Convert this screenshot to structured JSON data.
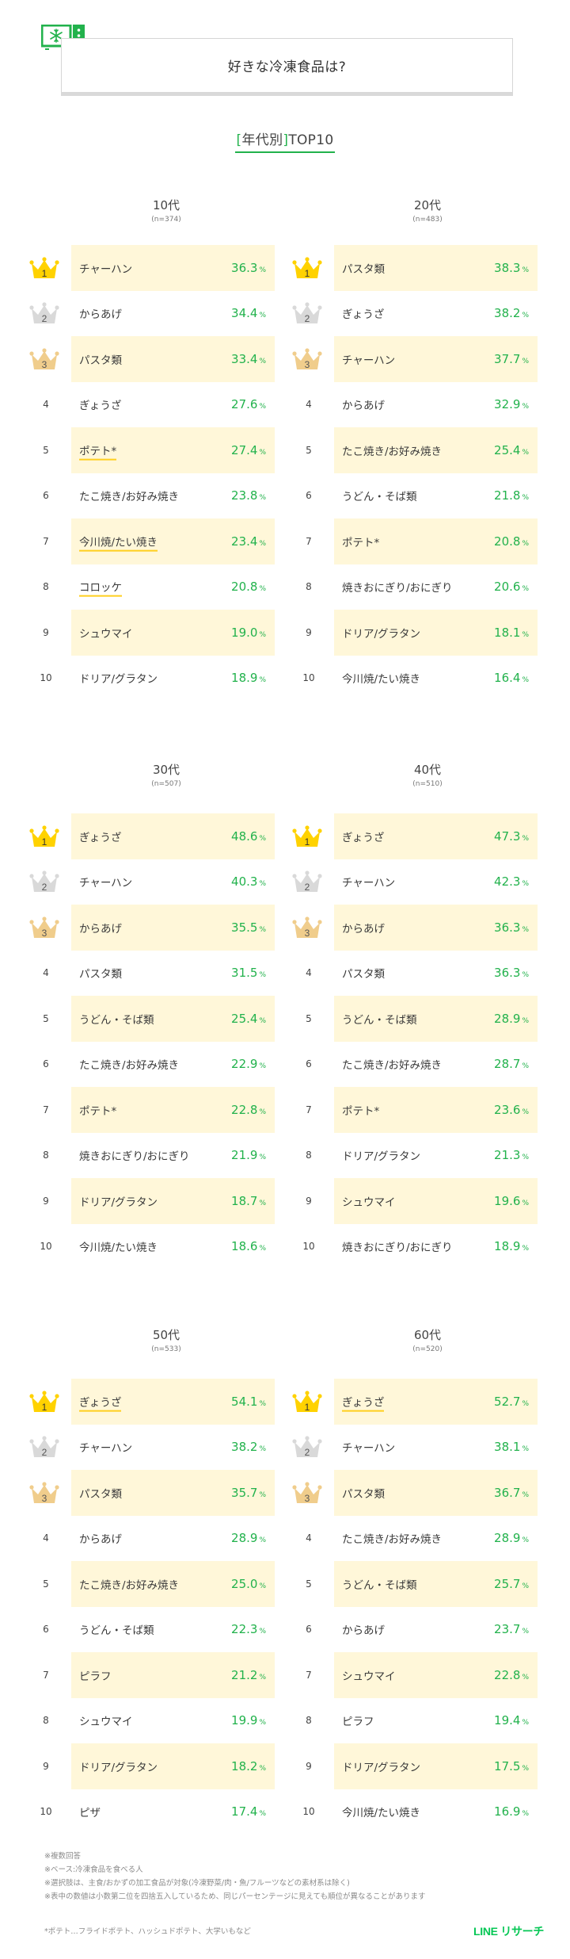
{
  "header": {
    "title": "好きな冷凍食品は?",
    "icon": "freezer-snowflake-icon"
  },
  "subtitle": {
    "bracket_open": "[",
    "label": "年代別",
    "bracket_close": "]",
    "suffix": "TOP10"
  },
  "colors": {
    "accent_green": "#22b24c",
    "highlight_bg": "#fff7d9",
    "underline_yellow": "#ffcf1f",
    "crown_gold": "#ffd200",
    "crown_silver": "#d9d9d9",
    "crown_bronze": "#f0cd8c",
    "brand_green": "#06c755"
  },
  "percent_unit": "%",
  "panels": [
    {
      "age": "10代",
      "n": "(n=374)",
      "rows": [
        {
          "rank": "1",
          "name": "チャーハン",
          "value": "36.3"
        },
        {
          "rank": "2",
          "name": "からあげ",
          "value": "34.4"
        },
        {
          "rank": "3",
          "name": "パスタ類",
          "value": "33.4"
        },
        {
          "rank": "4",
          "name": "ぎょうざ",
          "value": "27.6"
        },
        {
          "rank": "5",
          "name": "ポテト*",
          "value": "27.4"
        },
        {
          "rank": "6",
          "name": "たこ焼き/お好み焼き",
          "value": "23.8"
        },
        {
          "rank": "7",
          "name": "今川焼/たい焼き",
          "value": "23.4"
        },
        {
          "rank": "8",
          "name": "コロッケ",
          "value": "20.8"
        },
        {
          "rank": "9",
          "name": "シュウマイ",
          "value": "19.0"
        },
        {
          "rank": "10",
          "name": "ドリア/グラタン",
          "value": "18.9"
        }
      ]
    },
    {
      "age": "20代",
      "n": "(n=483)",
      "rows": [
        {
          "rank": "1",
          "name": "パスタ類",
          "value": "38.3"
        },
        {
          "rank": "2",
          "name": "ぎょうざ",
          "value": "38.2"
        },
        {
          "rank": "3",
          "name": "チャーハン",
          "value": "37.7"
        },
        {
          "rank": "4",
          "name": "からあげ",
          "value": "32.9"
        },
        {
          "rank": "5",
          "name": "たこ焼き/お好み焼き",
          "value": "25.4"
        },
        {
          "rank": "6",
          "name": "うどん・そば類",
          "value": "21.8"
        },
        {
          "rank": "7",
          "name": "ポテト*",
          "value": "20.8"
        },
        {
          "rank": "8",
          "name": "焼きおにぎり/おにぎり",
          "value": "20.6"
        },
        {
          "rank": "9",
          "name": "ドリア/グラタン",
          "value": "18.1"
        },
        {
          "rank": "10",
          "name": "今川焼/たい焼き",
          "value": "16.4"
        }
      ]
    },
    {
      "age": "30代",
      "n": "(n=507)",
      "rows": [
        {
          "rank": "1",
          "name": "ぎょうざ",
          "value": "48.6"
        },
        {
          "rank": "2",
          "name": "チャーハン",
          "value": "40.3"
        },
        {
          "rank": "3",
          "name": "からあげ",
          "value": "35.5"
        },
        {
          "rank": "4",
          "name": "パスタ類",
          "value": "31.5"
        },
        {
          "rank": "5",
          "name": "うどん・そば類",
          "value": "25.4"
        },
        {
          "rank": "6",
          "name": "たこ焼き/お好み焼き",
          "value": "22.9"
        },
        {
          "rank": "7",
          "name": "ポテト*",
          "value": "22.8"
        },
        {
          "rank": "8",
          "name": "焼きおにぎり/おにぎり",
          "value": "21.9"
        },
        {
          "rank": "9",
          "name": "ドリア/グラタン",
          "value": "18.7"
        },
        {
          "rank": "10",
          "name": "今川焼/たい焼き",
          "value": "18.6"
        }
      ]
    },
    {
      "age": "40代",
      "n": "(n=510)",
      "rows": [
        {
          "rank": "1",
          "name": "ぎょうざ",
          "value": "47.3"
        },
        {
          "rank": "2",
          "name": "チャーハン",
          "value": "42.3"
        },
        {
          "rank": "3",
          "name": "からあげ",
          "value": "36.3"
        },
        {
          "rank": "4",
          "name": "パスタ類",
          "value": "36.3"
        },
        {
          "rank": "5",
          "name": "うどん・そば類",
          "value": "28.9"
        },
        {
          "rank": "6",
          "name": "たこ焼き/お好み焼き",
          "value": "28.7"
        },
        {
          "rank": "7",
          "name": "ポテト*",
          "value": "23.6"
        },
        {
          "rank": "8",
          "name": "ドリア/グラタン",
          "value": "21.3"
        },
        {
          "rank": "9",
          "name": "シュウマイ",
          "value": "19.6"
        },
        {
          "rank": "10",
          "name": "焼きおにぎり/おにぎり",
          "value": "18.9"
        }
      ]
    },
    {
      "age": "50代",
      "n": "(n=533)",
      "rows": [
        {
          "rank": "1",
          "name": "ぎょうざ",
          "value": "54.1"
        },
        {
          "rank": "2",
          "name": "チャーハン",
          "value": "38.2"
        },
        {
          "rank": "3",
          "name": "パスタ類",
          "value": "35.7"
        },
        {
          "rank": "4",
          "name": "からあげ",
          "value": "28.9"
        },
        {
          "rank": "5",
          "name": "たこ焼き/お好み焼き",
          "value": "25.0"
        },
        {
          "rank": "6",
          "name": "うどん・そば類",
          "value": "22.3"
        },
        {
          "rank": "7",
          "name": "ピラフ",
          "value": "21.2"
        },
        {
          "rank": "8",
          "name": "シュウマイ",
          "value": "19.9"
        },
        {
          "rank": "9",
          "name": "ドリア/グラタン",
          "value": "18.2"
        },
        {
          "rank": "10",
          "name": "ピザ",
          "value": "17.4"
        }
      ]
    },
    {
      "age": "60代",
      "n": "(n=520)",
      "rows": [
        {
          "rank": "1",
          "name": "ぎょうざ",
          "value": "52.7"
        },
        {
          "rank": "2",
          "name": "チャーハン",
          "value": "38.1"
        },
        {
          "rank": "3",
          "name": "パスタ類",
          "value": "36.7"
        },
        {
          "rank": "4",
          "name": "たこ焼き/お好み焼き",
          "value": "28.9"
        },
        {
          "rank": "5",
          "name": "うどん・そば類",
          "value": "25.7"
        },
        {
          "rank": "6",
          "name": "からあげ",
          "value": "23.7"
        },
        {
          "rank": "7",
          "name": "シュウマイ",
          "value": "22.8"
        },
        {
          "rank": "8",
          "name": "ピラフ",
          "value": "19.4"
        },
        {
          "rank": "9",
          "name": "ドリア/グラタン",
          "value": "17.5"
        },
        {
          "rank": "10",
          "name": "今川焼/たい焼き",
          "value": "16.9"
        }
      ]
    }
  ],
  "notes": [
    "※複数回答",
    "※ベース:冷凍食品を食べる人",
    "※選択肢は、主食/おかずの加工食品が対象(冷凍野菜/肉・魚/フルーツなどの素材系は除く)",
    "※表中の数値は小数第二位を四捨五入しているため、同じパーセンテージに見えても順位が異なることがあります"
  ],
  "footnote": "*ポテト…フライドポテト、ハッシュドポテト、大学いもなど",
  "brand": "LINE リサーチ",
  "chart_data": {
    "type": "table",
    "title": "好きな冷凍食品は? [年代別]TOP10",
    "unit": "%",
    "columns": [
      "rank",
      "item",
      "percent"
    ],
    "groups": [
      {
        "name": "10代",
        "n": 374,
        "items": [
          "チャーハン",
          "からあげ",
          "パスタ類",
          "ぎょうざ",
          "ポテト*",
          "たこ焼き/お好み焼き",
          "今川焼/たい焼き",
          "コロッケ",
          "シュウマイ",
          "ドリア/グラタン"
        ],
        "values": [
          36.3,
          34.4,
          33.4,
          27.6,
          27.4,
          23.8,
          23.4,
          20.8,
          19.0,
          18.9
        ]
      },
      {
        "name": "20代",
        "n": 483,
        "items": [
          "パスタ類",
          "ぎょうざ",
          "チャーハン",
          "からあげ",
          "たこ焼き/お好み焼き",
          "うどん・そば類",
          "ポテト*",
          "焼きおにぎり/おにぎり",
          "ドリア/グラタン",
          "今川焼/たい焼き"
        ],
        "values": [
          38.3,
          38.2,
          37.7,
          32.9,
          25.4,
          21.8,
          20.8,
          20.6,
          18.1,
          16.4
        ]
      },
      {
        "name": "30代",
        "n": 507,
        "items": [
          "ぎょうざ",
          "チャーハン",
          "からあげ",
          "パスタ類",
          "うどん・そば類",
          "たこ焼き/お好み焼き",
          "ポテト*",
          "焼きおにぎり/おにぎり",
          "ドリア/グラタン",
          "今川焼/たい焼き"
        ],
        "values": [
          48.6,
          40.3,
          35.5,
          31.5,
          25.4,
          22.9,
          22.8,
          21.9,
          18.7,
          18.6
        ]
      },
      {
        "name": "40代",
        "n": 510,
        "items": [
          "ぎょうざ",
          "チャーハン",
          "からあげ",
          "パスタ類",
          "うどん・そば類",
          "たこ焼き/お好み焼き",
          "ポテト*",
          "ドリア/グラタン",
          "シュウマイ",
          "焼きおにぎり/おにぎり"
        ],
        "values": [
          47.3,
          42.3,
          36.3,
          36.3,
          28.9,
          28.7,
          23.6,
          21.3,
          19.6,
          18.9
        ]
      },
      {
        "name": "50代",
        "n": 533,
        "items": [
          "ぎょうざ",
          "チャーハン",
          "パスタ類",
          "からあげ",
          "たこ焼き/お好み焼き",
          "うどん・そば類",
          "ピラフ",
          "シュウマイ",
          "ドリア/グラタン",
          "ピザ"
        ],
        "values": [
          54.1,
          38.2,
          35.7,
          28.9,
          25.0,
          22.3,
          21.2,
          19.9,
          18.2,
          17.4
        ]
      },
      {
        "name": "60代",
        "n": 520,
        "items": [
          "ぎょうざ",
          "チャーハン",
          "パスタ類",
          "たこ焼き/お好み焼き",
          "うどん・そば類",
          "からあげ",
          "シュウマイ",
          "ピラフ",
          "ドリア/グラタン",
          "今川焼/たい焼き"
        ],
        "values": [
          52.7,
          38.1,
          36.7,
          28.9,
          25.7,
          23.7,
          22.8,
          19.4,
          17.5,
          16.9
        ]
      }
    ]
  }
}
